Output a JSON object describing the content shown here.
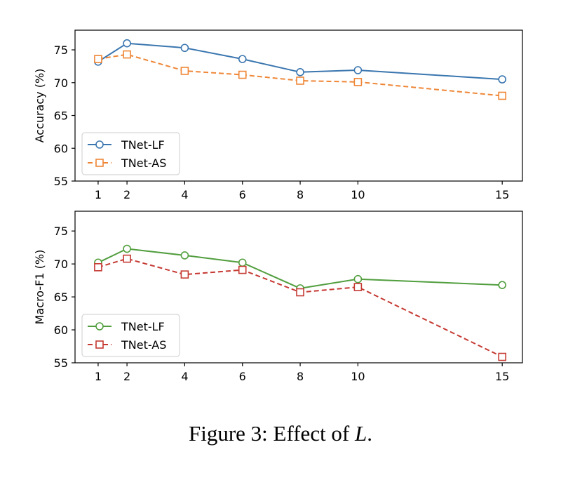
{
  "chart_data": [
    {
      "type": "line",
      "title": "",
      "xlabel": "",
      "ylabel": "Accuracy (%)",
      "x": [
        1,
        2,
        4,
        6,
        8,
        10,
        15
      ],
      "xticks": [
        1,
        2,
        4,
        6,
        8,
        10,
        15
      ],
      "yticks": [
        55,
        60,
        65,
        70,
        75
      ],
      "xlim": [
        0.2,
        15.7
      ],
      "ylim": [
        55,
        78
      ],
      "grid": false,
      "legend_position": "lower-left",
      "series": [
        {
          "name": "TNet-LF",
          "color": "#3a76af",
          "style": "solid",
          "marker": "circle",
          "values": [
            73.2,
            76.0,
            75.3,
            73.6,
            71.6,
            71.9,
            70.5
          ]
        },
        {
          "name": "TNet-AS",
          "color": "#ef8636",
          "style": "dashed",
          "marker": "square",
          "values": [
            73.6,
            74.3,
            71.8,
            71.2,
            70.3,
            70.1,
            68.0
          ]
        }
      ]
    },
    {
      "type": "line",
      "title": "",
      "xlabel": "",
      "ylabel": "Macro-F1 (%)",
      "x": [
        1,
        2,
        4,
        6,
        8,
        10,
        15
      ],
      "xticks": [
        1,
        2,
        4,
        6,
        8,
        10,
        15
      ],
      "yticks": [
        55,
        60,
        65,
        70,
        75
      ],
      "xlim": [
        0.2,
        15.7
      ],
      "ylim": [
        55,
        78
      ],
      "grid": false,
      "legend_position": "lower-left",
      "series": [
        {
          "name": "TNet-LF",
          "color": "#519e3e",
          "style": "solid",
          "marker": "circle",
          "values": [
            70.2,
            72.3,
            71.3,
            70.2,
            66.3,
            67.7,
            66.8
          ]
        },
        {
          "name": "TNet-AS",
          "color": "#c53932",
          "style": "dashed",
          "marker": "square",
          "values": [
            69.5,
            70.8,
            68.4,
            69.1,
            65.7,
            66.5,
            55.9
          ]
        }
      ]
    }
  ],
  "caption": {
    "prefix": "Figure 3: Effect of ",
    "variable": "L",
    "suffix": "."
  }
}
